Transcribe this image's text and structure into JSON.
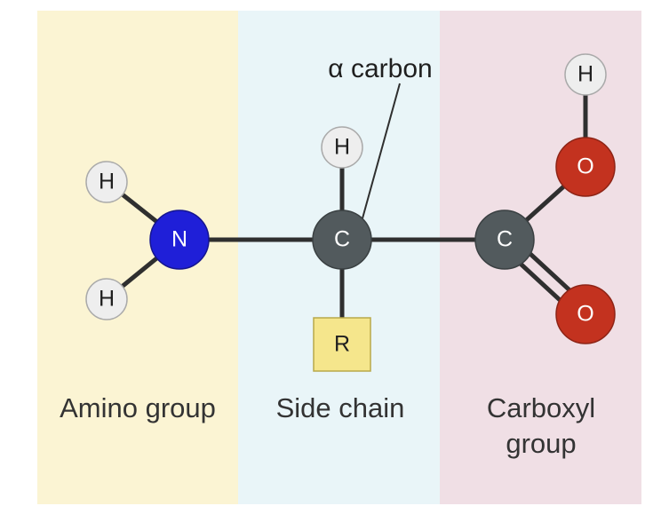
{
  "regions": {
    "amino": {
      "label": "Amino group",
      "color": "#fbf4d3"
    },
    "side_chain": {
      "label": "Side chain",
      "color": "#e9f5f8"
    },
    "carboxyl": {
      "label_line1": "Carboxyl",
      "label_line2": "group",
      "color": "#f0dfe5"
    }
  },
  "callout": {
    "label": "α carbon"
  },
  "atoms": {
    "amino_h_top": "H",
    "amino_h_bottom": "H",
    "nitrogen": "N",
    "alpha_carbon": "C",
    "alpha_h": "H",
    "r_group": "R",
    "carboxyl_carbon": "C",
    "hydroxyl_oxygen": "O",
    "hydroxyl_h": "H",
    "carbonyl_oxygen": "O"
  },
  "colors": {
    "hydrogen": "#eeeeee",
    "nitrogen": "#1f1fd8",
    "carbon": "#525a5d",
    "oxygen": "#c3321f",
    "r_group": "#f5e68c",
    "bond": "#2f2f2f"
  }
}
